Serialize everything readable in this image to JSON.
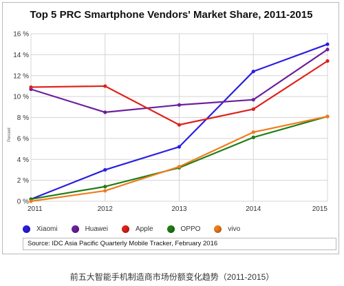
{
  "chart_data": {
    "type": "line",
    "title": "Top 5 PRC Smartphone Vendors' Market Share, 2011-2015",
    "ylabel": "Percent",
    "x": [
      "2011",
      "2012",
      "2013",
      "2014",
      "2015"
    ],
    "yticks": [
      "0 %",
      "2 %",
      "4 %",
      "6 %",
      "8 %",
      "10 %",
      "12 %",
      "14 %",
      "16 %"
    ],
    "ylim": [
      0,
      16
    ],
    "grid": true,
    "legend_position": "bottom",
    "series": [
      {
        "name": "Xiaomi",
        "color": "#2a1de0",
        "values": [
          0.2,
          3.0,
          5.2,
          12.4,
          15.0
        ]
      },
      {
        "name": "Huawei",
        "color": "#6c1f9e",
        "values": [
          10.7,
          8.5,
          9.2,
          9.7,
          14.5
        ]
      },
      {
        "name": "Apple",
        "color": "#e0201b",
        "values": [
          10.9,
          11.0,
          7.3,
          8.8,
          13.4
        ]
      },
      {
        "name": "OPPO",
        "color": "#1f7d14",
        "values": [
          0.2,
          1.4,
          3.2,
          6.1,
          8.1
        ]
      },
      {
        "name": "vivo",
        "color": "#f07b1a",
        "values": [
          0.0,
          1.0,
          3.3,
          6.6,
          8.1
        ]
      }
    ]
  },
  "source": "Source:  IDC Asia Pacific Quarterly Mobile Tracker,  February 2016",
  "caption": "前五大智能手机制造商市场份额变化趋势（2011-2015）"
}
